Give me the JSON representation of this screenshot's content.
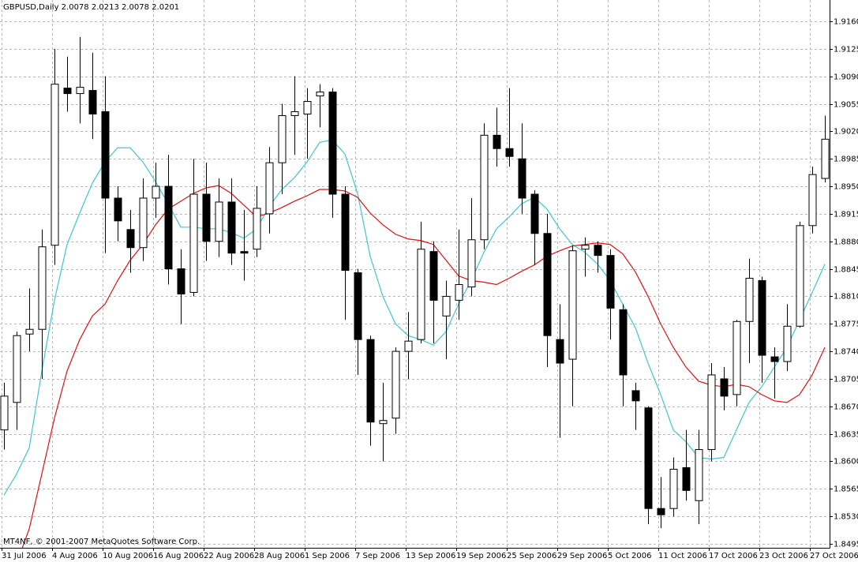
{
  "chart_data": {
    "type": "candlestick",
    "title": "GBPUSD,Daily  2.0078 2.0213 2.0078 2.0201",
    "copyright": "MT4NF, © 2001-2007 MetaQuotes Software Corp.",
    "categories": [
      "31 Jul 2006",
      null,
      null,
      null,
      "4 Aug 2006",
      null,
      null,
      null,
      "10 Aug 2006",
      null,
      null,
      null,
      "16 Aug 2006",
      null,
      null,
      null,
      "22 Aug 2006",
      null,
      null,
      null,
      "28 Aug 2006",
      null,
      null,
      null,
      "1 Sep 2006",
      null,
      null,
      null,
      "7 Sep 2006",
      null,
      null,
      null,
      "13 Sep 2006",
      null,
      null,
      null,
      "19 Sep 2006",
      null,
      null,
      null,
      "25 Sep 2006",
      null,
      null,
      null,
      "29 Sep 2006",
      null,
      null,
      null,
      "5 Oct 2006",
      null,
      null,
      null,
      "11 Oct 2006",
      null,
      null,
      null,
      "17 Oct 2006",
      null,
      null,
      null,
      "23 Oct 2006",
      null,
      null,
      null,
      "27 Oct 2006",
      null
    ],
    "open": [
      1.864,
      1.8675,
      1.8762,
      1.8768,
      1.8875,
      1.9075,
      1.9068,
      1.9072,
      1.9045,
      1.8935,
      1.8895,
      1.8872,
      1.8935,
      1.895,
      1.8845,
      1.8815,
      1.894,
      1.888,
      1.893,
      1.8867,
      1.887,
      1.8915,
      1.898,
      1.904,
      1.9042,
      1.9065,
      1.907,
      1.894,
      1.884,
      1.8755,
      1.8648,
      1.8655,
      1.874,
      1.8755,
      1.8867,
      1.8785,
      1.8805,
      1.8822,
      1.8882,
      1.9015,
      1.8998,
      1.8985,
      1.894,
      1.889,
      1.8755,
      1.873,
      1.887,
      1.8875,
      1.8862,
      1.8793,
      1.869,
      1.8668,
      1.854,
      1.854,
      1.8592,
      1.855,
      1.8615,
      1.8705,
      1.8685,
      1.8778,
      1.883,
      1.8733,
      1.8727,
      1.8772,
      1.89,
      1.896
    ],
    "high": [
      1.87,
      1.8765,
      1.882,
      1.8895,
      1.9125,
      1.9115,
      1.914,
      1.912,
      1.909,
      1.895,
      1.892,
      1.896,
      1.898,
      1.899,
      1.887,
      1.8985,
      1.898,
      1.896,
      1.896,
      1.892,
      1.895,
      1.9,
      1.9055,
      1.909,
      1.9075,
      1.908,
      1.9075,
      1.895,
      1.8845,
      1.876,
      1.87,
      1.8745,
      1.879,
      1.8905,
      1.888,
      1.883,
      1.8895,
      1.8935,
      1.903,
      1.905,
      1.9075,
      1.903,
      1.8945,
      1.8915,
      1.88,
      1.8875,
      1.8885,
      1.888,
      1.887,
      1.88,
      1.87,
      1.867,
      1.858,
      1.8605,
      1.864,
      1.864,
      1.8725,
      1.872,
      1.878,
      1.8858,
      1.8835,
      1.8745,
      1.88,
      1.8905,
      1.8975,
      1.904
    ],
    "low": [
      1.8615,
      1.864,
      1.874,
      1.8705,
      1.885,
      1.9045,
      1.903,
      1.901,
      1.8865,
      1.888,
      1.884,
      1.8855,
      1.891,
      1.8825,
      1.8775,
      1.881,
      1.8855,
      1.886,
      1.885,
      1.883,
      1.886,
      1.889,
      1.894,
      1.899,
      1.8985,
      1.9025,
      1.891,
      1.878,
      1.871,
      1.862,
      1.86,
      1.8635,
      1.8705,
      1.875,
      1.875,
      1.873,
      1.878,
      1.881,
      1.887,
      1.8975,
      1.8975,
      1.8915,
      1.885,
      1.872,
      1.863,
      1.867,
      1.8835,
      1.884,
      1.8755,
      1.867,
      1.864,
      1.852,
      1.8515,
      1.853,
      1.855,
      1.852,
      1.86,
      1.8665,
      1.867,
      1.8725,
      1.87,
      1.868,
      1.8715,
      1.877,
      1.889,
      1.8955
    ],
    "close": [
      1.8683,
      1.876,
      1.8768,
      1.8873,
      1.908,
      1.9068,
      1.9076,
      1.9042,
      1.8935,
      1.8906,
      1.8872,
      1.8935,
      1.895,
      1.8845,
      1.8813,
      1.894,
      1.888,
      1.893,
      1.8865,
      1.8865,
      1.8922,
      1.898,
      1.904,
      1.9045,
      1.9058,
      1.907,
      1.894,
      1.8843,
      1.8755,
      1.865,
      1.8652,
      1.874,
      1.8753,
      1.887,
      1.8805,
      1.881,
      1.8825,
      1.8882,
      1.9015,
      1.8998,
      1.8988,
      1.8935,
      1.889,
      1.876,
      1.8725,
      1.8868,
      1.8875,
      1.8862,
      1.8795,
      1.871,
      1.8677,
      1.854,
      1.8532,
      1.859,
      1.8563,
      1.8615,
      1.871,
      1.8683,
      1.8778,
      1.8833,
      1.8735,
      1.8727,
      1.8772,
      1.89,
      1.8965,
      1.901
    ],
    "up_color": "#ffffff",
    "down_color": "#000000",
    "outline_color": "#000000",
    "lines": [
      {
        "color": "#3cc6d8",
        "values": [
          1.8557,
          1.8584,
          1.8617,
          1.8715,
          1.8805,
          1.8876,
          1.8916,
          1.8954,
          1.8981,
          1.8999,
          1.8999,
          1.8981,
          1.8956,
          1.8928,
          1.8898,
          1.8898,
          1.8896,
          1.8896,
          1.8891,
          1.8884,
          1.8896,
          1.8924,
          1.8946,
          1.8961,
          1.8981,
          1.9006,
          1.9009,
          1.8991,
          1.8941,
          1.8861,
          1.881,
          1.8775,
          1.876,
          1.8755,
          1.8748,
          1.8765,
          1.88,
          1.883,
          1.8866,
          1.8896,
          1.8911,
          1.8928,
          1.8936,
          1.8921,
          1.8896,
          1.8876,
          1.8866,
          1.8851,
          1.883,
          1.88,
          1.877,
          1.8725,
          1.8685,
          1.864,
          1.8625,
          1.8605,
          1.8603,
          1.8605,
          1.864,
          1.8675,
          1.8695,
          1.872,
          1.8745,
          1.878,
          1.8815,
          1.8851
        ]
      },
      {
        "color": "#e01010",
        "values": [
          null,
          1.847,
          1.8514,
          1.8584,
          1.8655,
          1.8715,
          1.8755,
          1.8785,
          1.88,
          1.883,
          1.8856,
          1.8876,
          1.8901,
          1.8921,
          1.8931,
          1.8941,
          1.8948,
          1.8951,
          1.8941,
          1.8926,
          1.8911,
          1.8916,
          1.8923,
          1.8931,
          1.8938,
          1.8946,
          1.8946,
          1.8944,
          1.8936,
          1.8916,
          1.8901,
          1.8889,
          1.8883,
          1.8881,
          1.8876,
          1.8856,
          1.8836,
          1.883,
          1.8828,
          1.8825,
          1.8833,
          1.8842,
          1.885,
          1.8861,
          1.8868,
          1.8874,
          1.8876,
          1.8878,
          1.8876,
          1.8864,
          1.8841,
          1.881,
          1.8775,
          1.8745,
          1.872,
          1.8702,
          1.8697,
          1.8695,
          1.8698,
          1.8695,
          1.8685,
          1.8677,
          1.8675,
          1.8685,
          1.871,
          1.8745
        ]
      }
    ],
    "ylim": [
      1.849,
      1.91871
    ],
    "yticks": [
      {
        "value": 1.916,
        "label": "1.9160"
      },
      1.9125,
      {
        "value": 1.909,
        "label": "1.9090"
      },
      1.9055,
      {
        "value": 1.902,
        "label": "1.9020"
      },
      1.8985,
      {
        "value": 1.895,
        "label": "1.8950"
      },
      1.8915,
      {
        "value": 1.888,
        "label": "1.8880"
      },
      1.8845,
      {
        "value": 1.881,
        "label": "1.8810"
      },
      1.8775,
      {
        "value": 1.874,
        "label": "1.8740"
      },
      1.8705,
      {
        "value": 1.867,
        "label": "1.8670"
      },
      1.8635,
      {
        "value": 1.86,
        "label": "1.8600"
      },
      1.8565,
      {
        "value": 1.853,
        "label": "1.8530"
      },
      1.8495
    ],
    "grid": true
  }
}
